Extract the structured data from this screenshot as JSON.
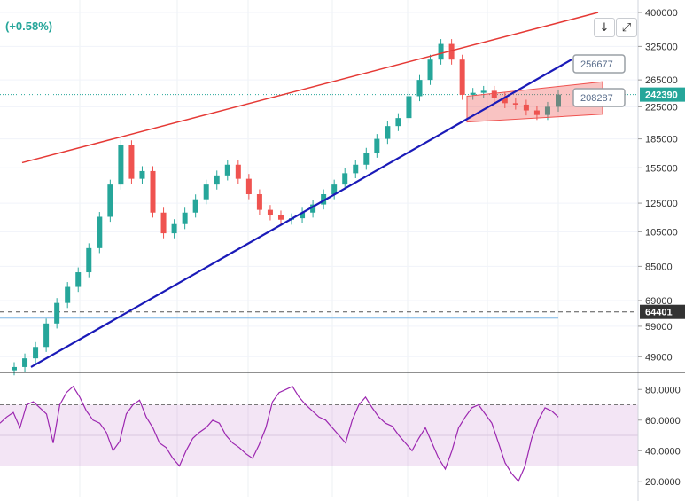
{
  "header": {
    "change_text": "(+0.58%)"
  },
  "toolbar": {
    "download_icon": "↓",
    "fullscreen_icon": "⤢"
  },
  "colors": {
    "up": "#26a69a",
    "down": "#ef5350",
    "trend_upper": "#e53935",
    "trend_lower": "#1a1ab8",
    "rsi_line": "#9c27b0",
    "rsi_band": "rgba(156,39,176,0.12)",
    "channel_fill": "rgba(239,83,80,0.35)",
    "hline": "#7cb5e6"
  },
  "chart_data": [
    {
      "type": "candlestick",
      "title": "",
      "ylim": [
        45000,
        400000
      ],
      "y_scale": "log",
      "y_tick_labels": [
        "400000",
        "325000",
        "265000",
        "225000",
        "185000",
        "155000",
        "125000",
        "105000",
        "85000",
        "69000",
        "59000",
        "49000"
      ],
      "price_labels": [
        {
          "value": 242390,
          "text": "242390",
          "style": "current"
        },
        {
          "value": 64401,
          "text": "64401",
          "style": "dashed-level"
        }
      ],
      "annotations": [
        {
          "text": "256677"
        },
        {
          "text": "208287"
        }
      ],
      "series": [
        {
          "name": "",
          "close": [
            46000,
            48500,
            52000,
            60000,
            68000,
            75000,
            82000,
            95000,
            115000,
            140000,
            178000,
            145000,
            152000,
            118000,
            104000,
            110000,
            118000,
            128000,
            140000,
            148000,
            158000,
            145000,
            132000,
            120000,
            116000,
            113000,
            114000,
            118000,
            124000,
            132000,
            140000,
            150000,
            158000,
            170000,
            185000,
            200000,
            210000,
            240000,
            265000,
            300000,
            330000,
            300000,
            242000,
            245000,
            248000,
            238000,
            230000,
            228000,
            220000,
            214000,
            225000,
            242390
          ]
        }
      ],
      "trendlines": [
        {
          "name": "upper",
          "from": 160000,
          "to": 400000
        },
        {
          "name": "lower",
          "from": 46000,
          "to": 300000
        }
      ]
    },
    {
      "type": "line",
      "title": "",
      "ylim": [
        10,
        90
      ],
      "y_tick_labels": [
        "80.0000",
        "60.0000",
        "40.0000",
        "20.0000"
      ],
      "bands": [
        30,
        70
      ],
      "series": [
        {
          "name": "",
          "values": [
            58,
            62,
            65,
            55,
            70,
            72,
            68,
            64,
            45,
            70,
            78,
            82,
            75,
            66,
            60,
            58,
            52,
            40,
            46,
            64,
            70,
            73,
            62,
            55,
            45,
            42,
            35,
            30,
            40,
            48,
            52,
            55,
            60,
            58,
            50,
            45,
            42,
            38,
            35,
            44,
            55,
            72,
            78,
            80,
            82,
            75,
            70,
            66,
            62,
            60,
            55,
            50,
            45,
            60,
            70,
            75,
            68,
            62,
            58,
            56,
            50,
            45,
            40,
            48,
            55,
            45,
            35,
            28,
            40,
            55,
            62,
            68,
            70,
            64,
            58,
            45,
            32,
            25,
            20,
            30,
            48,
            60,
            68,
            66,
            62
          ]
        }
      ]
    }
  ]
}
